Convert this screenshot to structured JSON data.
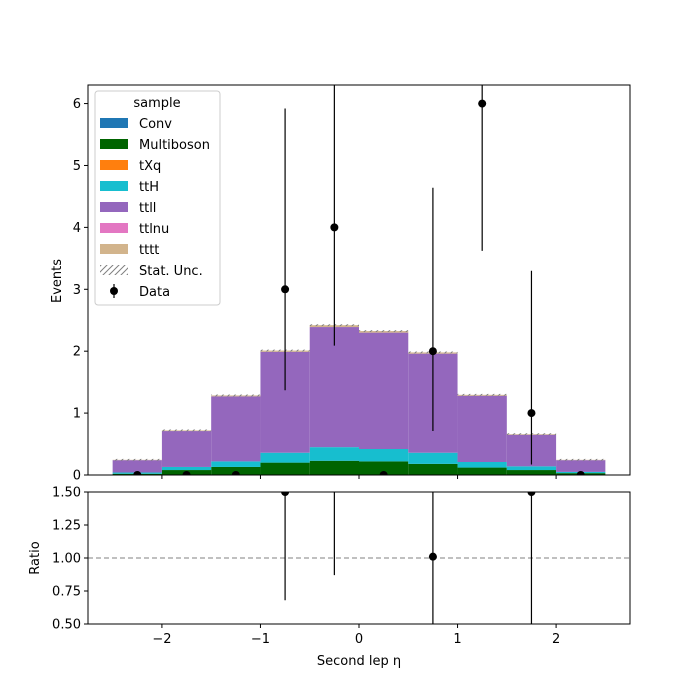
{
  "chart_data": {
    "type": "bar",
    "stacked": true,
    "bin_edges": [
      -2.5,
      -2.0,
      -1.5,
      -1.0,
      -0.5,
      0.0,
      0.5,
      1.0,
      1.5,
      2.0,
      2.5
    ],
    "series": [
      {
        "name": "Conv",
        "color": "#1f77b4",
        "values": [
          0,
          0,
          0,
          0,
          0,
          0,
          0,
          0,
          0,
          0
        ]
      },
      {
        "name": "Multiboson",
        "color": "#006400",
        "values": [
          0.02,
          0.08,
          0.13,
          0.2,
          0.23,
          0.22,
          0.18,
          0.12,
          0.08,
          0.03
        ]
      },
      {
        "name": "tXq",
        "color": "#ff7f0e",
        "values": [
          0,
          0,
          0,
          0,
          0,
          0,
          0,
          0,
          0,
          0
        ]
      },
      {
        "name": "ttH",
        "color": "#17becf",
        "values": [
          0.02,
          0.05,
          0.09,
          0.16,
          0.22,
          0.2,
          0.18,
          0.09,
          0.06,
          0.02
        ]
      },
      {
        "name": "ttll",
        "color": "#9467bd",
        "values": [
          0.2,
          0.58,
          1.05,
          1.63,
          1.94,
          1.88,
          1.6,
          1.07,
          0.51,
          0.19
        ]
      },
      {
        "name": "ttlnu",
        "color": "#e377c2",
        "values": [
          0,
          0,
          0,
          0,
          0,
          0,
          0,
          0,
          0,
          0
        ]
      },
      {
        "name": "tttt",
        "color": "#d2b48c",
        "values": [
          0.005,
          0.01,
          0.015,
          0.02,
          0.03,
          0.025,
          0.02,
          0.015,
          0.01,
          0.005
        ]
      }
    ],
    "stat_unc_label": "Stat. Unc.",
    "data": {
      "name": "Data",
      "x": [
        -2.25,
        -1.75,
        -1.25,
        -0.75,
        -0.25,
        0.25,
        0.75,
        1.25,
        1.75,
        2.25
      ],
      "y": [
        0,
        0,
        0,
        3,
        4,
        0,
        2,
        6,
        1,
        0
      ],
      "yerr_low": [
        0,
        0,
        0,
        1.63,
        1.91,
        0,
        1.29,
        2.38,
        0.83,
        0
      ],
      "yerr_high": [
        0,
        0,
        0,
        2.92,
        3.16,
        0,
        2.64,
        3.58,
        2.3,
        0
      ]
    },
    "ratio": {
      "x": [
        -0.75,
        -0.25,
        0.75,
        1.75
      ],
      "y": [
        1.5,
        1.65,
        1.01,
        1.5
      ],
      "yerr_low": [
        0.82,
        0.78,
        0.65,
        1.2
      ],
      "yerr_high": [
        1.45,
        1.3,
        1.35,
        3.4
      ]
    },
    "xlabel": "Second lep η",
    "ylabel": "Events",
    "ratio_ylabel": "Ratio",
    "xlim": [
      -2.75,
      2.75
    ],
    "ylim": [
      0,
      6.3
    ],
    "ratio_ylim": [
      0.5,
      1.5
    ],
    "ratio_reference": 1.0,
    "xticks": [
      -2,
      -1,
      0,
      1,
      2
    ],
    "xtick_labels": [
      "−2",
      "−1",
      "0",
      "1",
      "2"
    ],
    "yticks": [
      0,
      1,
      2,
      3,
      4,
      5,
      6
    ],
    "ytick_labels": [
      "0",
      "1",
      "2",
      "3",
      "4",
      "5",
      "6"
    ],
    "ratio_yticks": [
      0.5,
      0.75,
      1.0,
      1.25,
      1.5
    ],
    "ratio_ytick_labels": [
      "0.50",
      "0.75",
      "1.00",
      "1.25",
      "1.50"
    ],
    "legend_title": "sample",
    "legend_location": "upper-left",
    "grid": false
  }
}
